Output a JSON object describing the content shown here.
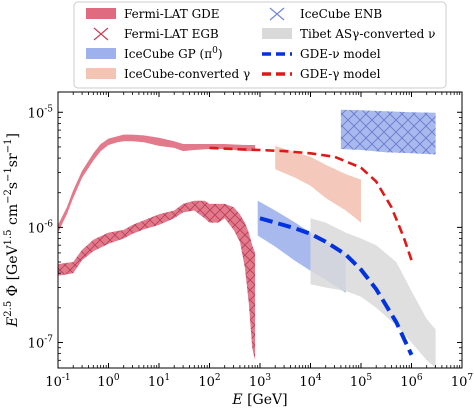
{
  "chart_data": {
    "type": "area",
    "title": "",
    "xlabel": "E [GeV]",
    "ylabel": "E^2.5 Φ [GeV^1.5 cm^-2 s^-1 sr^-1]",
    "xscale": "log",
    "yscale": "log",
    "xlim": [
      0.1,
      10000000
    ],
    "ylim": [
      6e-08,
      1.5e-05
    ],
    "x_ticks": [
      0.1,
      1,
      10,
      100,
      1000,
      10000,
      100000,
      1000000,
      10000000
    ],
    "x_tick_labels": [
      "10^-1",
      "10^0",
      "10^1",
      "10^2",
      "10^3",
      "10^4",
      "10^5",
      "10^6",
      "10^7"
    ],
    "y_ticks": [
      1e-07,
      1e-06,
      1e-05
    ],
    "y_tick_labels": [
      "10^-7",
      "10^-6",
      "10^-5"
    ],
    "grid": false,
    "legend_position": "top (outside plot, two columns)",
    "series": [
      {
        "name": "Fermi-LAT GDE",
        "kind": "band",
        "color": "#e06b80",
        "x": [
          0.1,
          0.15,
          0.2,
          0.3,
          0.5,
          0.7,
          1,
          1.5,
          2,
          3,
          5,
          10,
          20,
          30,
          50,
          100,
          200,
          500,
          800
        ],
        "y_low": [
          9e-07,
          1.3e-06,
          1.8e-06,
          2.7e-06,
          3.8e-06,
          4.6e-06,
          5.2e-06,
          5.5e-06,
          5.6e-06,
          5.6e-06,
          5.5e-06,
          5.1e-06,
          4.9e-06,
          4.6e-06,
          4.7e-06,
          4.8e-06,
          4.8e-06,
          4.6e-06,
          4.6e-06
        ],
        "y_high": [
          1.05e-06,
          1.5e-06,
          2.1e-06,
          3.1e-06,
          4.4e-06,
          5.3e-06,
          5.9e-06,
          6.2e-06,
          6.4e-06,
          6.4e-06,
          6.3e-06,
          6e-06,
          5.6e-06,
          5.3e-06,
          5.3e-06,
          5.3e-06,
          5.3e-06,
          5.2e-06,
          5.2e-06
        ]
      },
      {
        "name": "Fermi-LAT EGB",
        "kind": "hatched-band",
        "color": "#c7405a",
        "x": [
          0.1,
          0.2,
          0.3,
          0.5,
          1,
          2,
          3,
          5,
          10,
          20,
          30,
          50,
          80,
          100,
          150,
          200,
          300,
          400,
          500,
          600,
          700,
          800
        ],
        "y_low": [
          3.8e-07,
          4e-07,
          5.2e-07,
          6.2e-07,
          7.2e-07,
          8e-07,
          8.8e-07,
          9.6e-07,
          1.05e-06,
          1.2e-06,
          1.35e-06,
          1.4e-06,
          1.2e-06,
          1.1e-06,
          1.1e-06,
          1.2e-06,
          9.5e-07,
          7.5e-07,
          4.5e-07,
          2.2e-07,
          9e-08,
          7e-08
        ],
        "y_high": [
          4.8e-07,
          5e-07,
          6.4e-07,
          7.8e-07,
          9e-07,
          9.5e-07,
          1.05e-06,
          1.15e-06,
          1.3e-06,
          1.4e-06,
          1.6e-06,
          1.7e-06,
          1.7e-06,
          1.6e-06,
          1.6e-06,
          1.6e-06,
          1.5e-06,
          1.3e-06,
          1.1e-06,
          9e-07,
          7e-07,
          6e-07
        ]
      },
      {
        "name": "IceCube GP (π0)",
        "kind": "band",
        "color": "#9fb1ec",
        "x": [
          900,
          2000,
          5000,
          10000,
          20000,
          50000
        ],
        "y_low": [
          8.5e-07,
          6.8e-07,
          5.1e-07,
          4.2e-07,
          3.5e-07,
          2.7e-07
        ],
        "y_high": [
          1.7e-06,
          1.4e-06,
          1.1e-06,
          9e-07,
          7.5e-07,
          6e-07
        ]
      },
      {
        "name": "IceCube-converted γ",
        "kind": "band",
        "color": "#f3c3b4",
        "x": [
          2000,
          5000,
          10000,
          20000,
          50000,
          100000
        ],
        "y_low": [
          3.2e-06,
          2.7e-06,
          2.3e-06,
          1.8e-06,
          1.4e-06,
          1.1e-06
        ],
        "y_high": [
          5.1e-06,
          4.5e-06,
          4.1e-06,
          3.5e-06,
          2.9e-06,
          2.6e-06
        ]
      },
      {
        "name": "IceCube ENB",
        "kind": "hatched-band",
        "color": "#7686d8",
        "x": [
          40000,
          100000,
          300000,
          1000000,
          3000000
        ],
        "y_low": [
          4.8e-06,
          4.7e-06,
          4.5e-06,
          4.4e-06,
          4.3e-06
        ],
        "y_high": [
          1.05e-05,
          1.04e-05,
          1.02e-05,
          1e-05,
          9.9e-06
        ]
      },
      {
        "name": "Tibet ASγ-converted ν",
        "kind": "band",
        "color": "#d9d9d9",
        "x": [
          10000,
          20000,
          50000,
          100000,
          200000,
          500000,
          1000000,
          2000000,
          3000000
        ],
        "y_low": [
          3.2e-07,
          3e-07,
          2.8e-07,
          2.5e-07,
          2e-07,
          1.4e-07,
          1e-07,
          7e-08,
          6e-08
        ],
        "y_high": [
          1.2e-06,
          1.1e-06,
          9e-07,
          8e-07,
          7e-07,
          5e-07,
          2.8e-07,
          1.6e-07,
          1.3e-07
        ]
      },
      {
        "name": "GDE-ν model",
        "kind": "line",
        "style": "dashed",
        "color": "#0033dd",
        "x": [
          1000,
          2000,
          5000,
          10000,
          20000,
          50000,
          100000,
          200000,
          500000,
          1000000
        ],
        "y": [
          1.2e-06,
          1.1e-06,
          9.8e-07,
          8.8e-07,
          7.5e-07,
          5.8e-07,
          4.3e-07,
          2.9e-07,
          1.5e-07,
          7.8e-08
        ]
      },
      {
        "name": "GDE-γ model",
        "kind": "line",
        "style": "dashed",
        "color": "#e01818",
        "x": [
          100,
          300,
          1000,
          3000,
          10000,
          30000,
          100000,
          200000,
          400000,
          700000,
          1000000
        ],
        "y": [
          4.9e-06,
          4.8e-06,
          4.7e-06,
          4.6e-06,
          4.4e-06,
          4.1e-06,
          3.3e-06,
          2.5e-06,
          1.5e-06,
          8.2e-07,
          5.2e-07
        ]
      }
    ]
  },
  "legend": {
    "items": [
      {
        "label": "Fermi-LAT GDE",
        "color": "#e06b80",
        "icon": "filled-patch"
      },
      {
        "label": "Fermi-LAT EGB",
        "color": "#c7405a",
        "icon": "hatch-cross"
      },
      {
        "label": "IceCube GP (π",
        "sup": "0",
        "tail": ")",
        "color": "#9fb1ec",
        "icon": "filled-patch"
      },
      {
        "label": "IceCube-converted γ",
        "color": "#f3c3b4",
        "icon": "filled-patch"
      },
      {
        "label": "IceCube ENB",
        "color": "#7686d8",
        "icon": "hatch-cross"
      },
      {
        "label": "Tibet ASγ-converted ν",
        "color": "#d9d9d9",
        "icon": "filled-patch"
      },
      {
        "label": "GDE-ν model",
        "color": "#0033dd",
        "icon": "dashed-line"
      },
      {
        "label": "GDE-γ model",
        "color": "#e01818",
        "icon": "dashed-line"
      }
    ]
  }
}
